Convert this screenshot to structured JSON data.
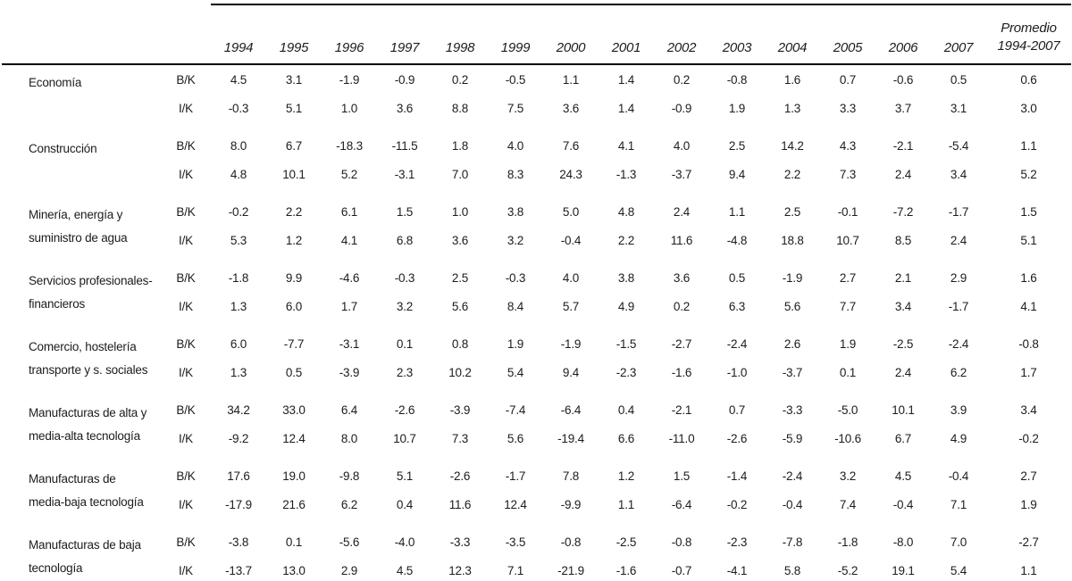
{
  "table": {
    "years": [
      "1994",
      "1995",
      "1996",
      "1997",
      "1998",
      "1999",
      "2000",
      "2001",
      "2002",
      "2003",
      "2004",
      "2005",
      "2006",
      "2007"
    ],
    "promedio_header_lines": [
      "Promedio",
      "1994-2007"
    ],
    "ratio_labels": [
      "B/K",
      "I/K"
    ],
    "sectors": [
      {
        "label_lines": [
          "Economía"
        ],
        "bk": [
          "4.5",
          "3.1",
          "-1.9",
          "-0.9",
          "0.2",
          "-0.5",
          "1.1",
          "1.4",
          "0.2",
          "-0.8",
          "1.6",
          "0.7",
          "-0.6",
          "0.5",
          "0.6"
        ],
        "ik": [
          "-0.3",
          "5.1",
          "1.0",
          "3.6",
          "8.8",
          "7.5",
          "3.6",
          "1.4",
          "-0.9",
          "1.9",
          "1.3",
          "3.3",
          "3.7",
          "3.1",
          "3.0"
        ]
      },
      {
        "label_lines": [
          "Construcción"
        ],
        "bk": [
          "8.0",
          "6.7",
          "-18.3",
          "-11.5",
          "1.8",
          "4.0",
          "7.6",
          "4.1",
          "4.0",
          "2.5",
          "14.2",
          "4.3",
          "-2.1",
          "-5.4",
          "1.1"
        ],
        "ik": [
          "4.8",
          "10.1",
          "5.2",
          "-3.1",
          "7.0",
          "8.3",
          "24.3",
          "-1.3",
          "-3.7",
          "9.4",
          "2.2",
          "7.3",
          "2.4",
          "3.4",
          "5.2"
        ]
      },
      {
        "label_lines": [
          "Minería, energía y",
          "suministro de agua"
        ],
        "bk": [
          "-0.2",
          "2.2",
          "6.1",
          "1.5",
          "1.0",
          "3.8",
          "5.0",
          "4.8",
          "2.4",
          "1.1",
          "2.5",
          "-0.1",
          "-7.2",
          "-1.7",
          "1.5"
        ],
        "ik": [
          "5.3",
          "1.2",
          "4.1",
          "6.8",
          "3.6",
          "3.2",
          "-0.4",
          "2.2",
          "11.6",
          "-4.8",
          "18.8",
          "10.7",
          "8.5",
          "2.4",
          "5.1"
        ]
      },
      {
        "label_lines": [
          "Servicios profesionales-",
          "financieros"
        ],
        "bk": [
          "-1.8",
          "9.9",
          "-4.6",
          "-0.3",
          "2.5",
          "-0.3",
          "4.0",
          "3.8",
          "3.6",
          "0.5",
          "-1.9",
          "2.7",
          "2.1",
          "2.9",
          "1.6"
        ],
        "ik": [
          "1.3",
          "6.0",
          "1.7",
          "3.2",
          "5.6",
          "8.4",
          "5.7",
          "4.9",
          "0.2",
          "6.3",
          "5.6",
          "7.7",
          "3.4",
          "-1.7",
          "4.1"
        ]
      },
      {
        "label_lines": [
          "Comercio, hostelería",
          "transporte y s. sociales"
        ],
        "bk": [
          "6.0",
          "-7.7",
          "-3.1",
          "0.1",
          "0.8",
          "1.9",
          "-1.9",
          "-1.5",
          "-2.7",
          "-2.4",
          "2.6",
          "1.9",
          "-2.5",
          "-2.4",
          "-0.8"
        ],
        "ik": [
          "1.3",
          "0.5",
          "-3.9",
          "2.3",
          "10.2",
          "5.4",
          "9.4",
          "-2.3",
          "-1.6",
          "-1.0",
          "-3.7",
          "0.1",
          "2.4",
          "6.2",
          "1.7"
        ]
      },
      {
        "label_lines": [
          "Manufacturas de alta y",
          "media-alta tecnología"
        ],
        "bk": [
          "34.2",
          "33.0",
          "6.4",
          "-2.6",
          "-3.9",
          "-7.4",
          "-6.4",
          "0.4",
          "-2.1",
          "0.7",
          "-3.3",
          "-5.0",
          "10.1",
          "3.9",
          "3.4"
        ],
        "ik": [
          "-9.2",
          "12.4",
          "8.0",
          "10.7",
          "7.3",
          "5.6",
          "-19.4",
          "6.6",
          "-11.0",
          "-2.6",
          "-5.9",
          "-10.6",
          "6.7",
          "4.9",
          "-0.2"
        ]
      },
      {
        "label_lines": [
          "Manufacturas de",
          "media-baja tecnología"
        ],
        "bk": [
          "17.6",
          "19.0",
          "-9.8",
          "5.1",
          "-2.6",
          "-1.7",
          "7.8",
          "1.2",
          "1.5",
          "-1.4",
          "-2.4",
          "3.2",
          "4.5",
          "-0.4",
          "2.7"
        ],
        "ik": [
          "-17.9",
          "21.6",
          "6.2",
          "0.4",
          "11.6",
          "12.4",
          "-9.9",
          "1.1",
          "-6.4",
          "-0.2",
          "-0.4",
          "7.4",
          "-0.4",
          "7.1",
          "1.9"
        ]
      },
      {
        "label_lines": [
          "Manufacturas de baja",
          "tecnología"
        ],
        "bk": [
          "-3.8",
          "0.1",
          "-5.6",
          "-4.0",
          "-3.3",
          "-3.5",
          "-0.8",
          "-2.5",
          "-0.8",
          "-2.3",
          "-7.8",
          "-1.8",
          "-8.0",
          "7.0",
          "-2.7"
        ],
        "ik": [
          "-13.7",
          "13.0",
          "2.9",
          "4.5",
          "12.3",
          "7.1",
          "-21.9",
          "-1.6",
          "-0.7",
          "-4.1",
          "5.8",
          "-5.2",
          "19.1",
          "5.4",
          "1.1"
        ]
      }
    ]
  }
}
